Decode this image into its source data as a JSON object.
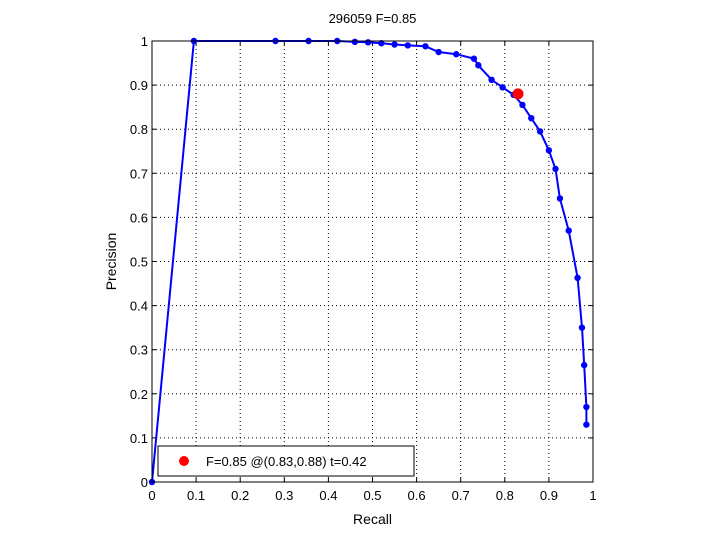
{
  "chart_data": {
    "type": "line",
    "title": "296059 F=0.85",
    "xlabel": "Recall",
    "ylabel": "Precision",
    "xlim": [
      0,
      1
    ],
    "ylim": [
      0,
      1
    ],
    "grid": true,
    "xticks": [
      "0",
      "0.1",
      "0.2",
      "0.3",
      "0.4",
      "0.5",
      "0.6",
      "0.7",
      "0.8",
      "0.9",
      "1"
    ],
    "yticks": [
      "0",
      "0.1",
      "0.2",
      "0.3",
      "0.4",
      "0.5",
      "0.6",
      "0.7",
      "0.8",
      "0.9",
      "1"
    ],
    "legend_position": "bottom-left",
    "series": [
      {
        "color": "#0000ff",
        "x": [
          0.0,
          0.095,
          0.28,
          0.355,
          0.42,
          0.46,
          0.49,
          0.52,
          0.55,
          0.58,
          0.62,
          0.65,
          0.69,
          0.73,
          0.74,
          0.77,
          0.795,
          0.82,
          0.84,
          0.86,
          0.88,
          0.9,
          0.915,
          0.925,
          0.945,
          0.965,
          0.975,
          0.98,
          0.985,
          0.985
        ],
        "y": [
          0.0,
          1.0,
          1.0,
          1.0,
          1.0,
          0.998,
          0.997,
          0.995,
          0.992,
          0.99,
          0.988,
          0.975,
          0.97,
          0.96,
          0.945,
          0.912,
          0.895,
          0.878,
          0.855,
          0.825,
          0.795,
          0.752,
          0.71,
          0.643,
          0.57,
          0.463,
          0.35,
          0.265,
          0.17,
          0.13
        ]
      }
    ],
    "highlight": {
      "x": 0.83,
      "y": 0.88,
      "color": "#ff0000",
      "label": "F=0.85 @(0.83,0.88) t=0.42"
    }
  }
}
